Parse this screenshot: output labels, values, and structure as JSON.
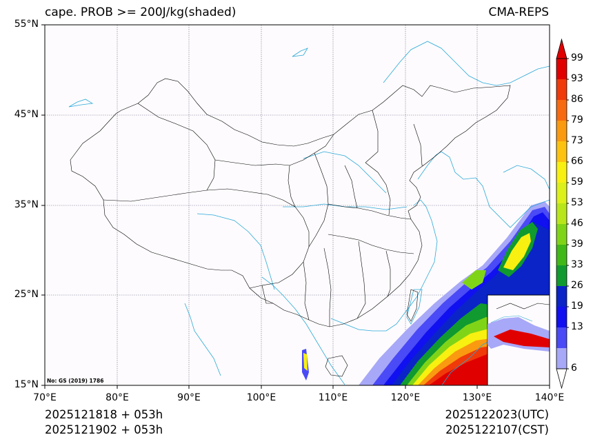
{
  "title_left": "cape. PROB >= 200J/kg(shaded)",
  "title_right": "CMA-REPS",
  "lat_labels": [
    "55°N",
    "45°N",
    "35°N",
    "25°N",
    "15°N"
  ],
  "lon_labels": [
    "70°E",
    "80°E",
    "90°E",
    "100°E",
    "110°E",
    "120°E",
    "130°E",
    "140°E"
  ],
  "footer": {
    "init_utc": "2025121818  +  053h",
    "init_cst": "2025121902  +  053h",
    "valid_utc": "2025122023(UTC)",
    "valid_cst": "2025122107(CST)"
  },
  "map_note": "No: GS (2019) 1786",
  "colorbar": {
    "labels": [
      "99",
      "93",
      "86",
      "79",
      "73",
      "66",
      "59",
      "53",
      "46",
      "39",
      "33",
      "26",
      "19",
      "13",
      "6"
    ],
    "colors": [
      "#e00000",
      "#f03a0a",
      "#f86a10",
      "#fa9a10",
      "#fdc210",
      "#f8f010",
      "#dcf01a",
      "#b8e61a",
      "#80d418",
      "#40b818",
      "#109a30",
      "#0a24c8",
      "#1010f0",
      "#4a4af6",
      "#a8a8f8"
    ],
    "top_color": "#e00000",
    "bottom_color": "#ffffff"
  },
  "colors": {
    "border": "#000000",
    "river": "#2aa8d8",
    "grid": "#6a6a8a",
    "background": "#fdfbfd"
  }
}
